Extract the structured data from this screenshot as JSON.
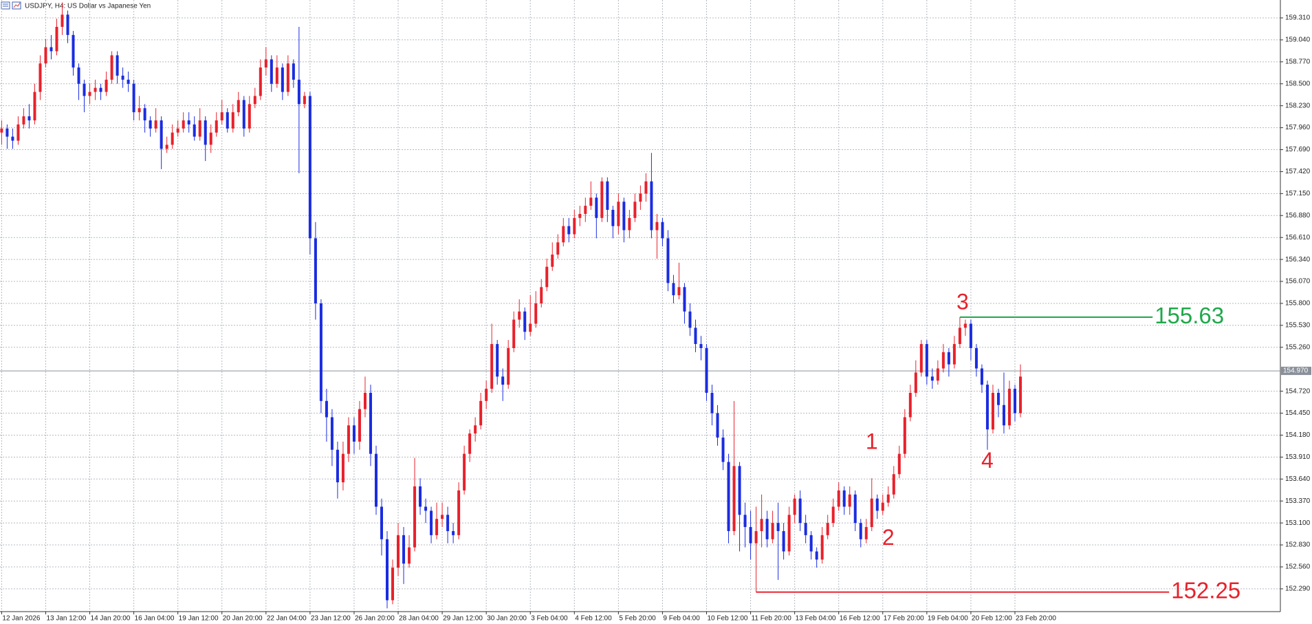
{
  "chart_data": {
    "type": "candlestick",
    "title": "USDJPY, H4:  US Dollar vs Japanese Yen",
    "up_color": "#e8212b",
    "down_color": "#1a2ce0",
    "grid": true,
    "xlim": [
      -0.3,
      232.2
    ],
    "ylim": [
      152.01,
      159.53
    ],
    "xticks": [
      {
        "value": 0,
        "label": "12 Jan 2026"
      },
      {
        "value": 8,
        "label": "13 Jan 12:00"
      },
      {
        "value": 16,
        "label": "14 Jan 20:00"
      },
      {
        "value": 24,
        "label": "16 Jan 04:00"
      },
      {
        "value": 32,
        "label": "19 Jan 12:00"
      },
      {
        "value": 40,
        "label": "20 Jan 20:00"
      },
      {
        "value": 48,
        "label": "22 Jan 04:00"
      },
      {
        "value": 56,
        "label": "23 Jan 12:00"
      },
      {
        "value": 64,
        "label": "26 Jan 20:00"
      },
      {
        "value": 72,
        "label": "28 Jan 04:00"
      },
      {
        "value": 80,
        "label": "29 Jan 12:00"
      },
      {
        "value": 88,
        "label": "30 Jan 20:00"
      },
      {
        "value": 96,
        "label": "3 Feb 04:00"
      },
      {
        "value": 104,
        "label": "4 Feb 12:00"
      },
      {
        "value": 112,
        "label": "5 Feb 20:00"
      },
      {
        "value": 120,
        "label": "9 Feb 04:00"
      },
      {
        "value": 128,
        "label": "10 Feb 12:00"
      },
      {
        "value": 136,
        "label": "11 Feb 20:00"
      },
      {
        "value": 144,
        "label": "13 Feb 04:00"
      },
      {
        "value": 152,
        "label": "16 Feb 12:00"
      },
      {
        "value": 160,
        "label": "17 Feb 20:00"
      },
      {
        "value": 168,
        "label": "19 Feb 04:00"
      },
      {
        "value": 176,
        "label": "20 Feb 12:00"
      },
      {
        "value": 184,
        "label": "23 Feb 20:00"
      }
    ],
    "yticks": [
      {
        "value": 152.29,
        "label": "152.290"
      },
      {
        "value": 152.56,
        "label": "152.560"
      },
      {
        "value": 152.83,
        "label": "152.830"
      },
      {
        "value": 153.1,
        "label": "153.100"
      },
      {
        "value": 153.37,
        "label": "153.370"
      },
      {
        "value": 153.64,
        "label": "153.640"
      },
      {
        "value": 153.91,
        "label": "153.910"
      },
      {
        "value": 154.18,
        "label": "154.180"
      },
      {
        "value": 154.45,
        "label": "154.450"
      },
      {
        "value": 154.72,
        "label": "154.720"
      },
      {
        "value": 155.26,
        "label": "155.260"
      },
      {
        "value": 155.53,
        "label": "155.530"
      },
      {
        "value": 155.8,
        "label": "155.800"
      },
      {
        "value": 156.07,
        "label": "156.070"
      },
      {
        "value": 156.34,
        "label": "156.340"
      },
      {
        "value": 156.61,
        "label": "156.610"
      },
      {
        "value": 156.88,
        "label": "156.880"
      },
      {
        "value": 157.15,
        "label": "157.150"
      },
      {
        "value": 157.42,
        "label": "157.420"
      },
      {
        "value": 157.69,
        "label": "157.690"
      },
      {
        "value": 157.96,
        "label": "157.960"
      },
      {
        "value": 158.23,
        "label": "158.230"
      },
      {
        "value": 158.5,
        "label": "158.500"
      },
      {
        "value": 158.77,
        "label": "158.770"
      },
      {
        "value": 159.04,
        "label": "159.040"
      },
      {
        "value": 159.31,
        "label": "159.310"
      }
    ],
    "current_price": {
      "value": 154.97,
      "label": "154.970"
    },
    "open": [
      157.9,
      157.95,
      157.85,
      157.8,
      158.0,
      158.1,
      158.05,
      158.4,
      158.75,
      158.95,
      158.9,
      159.2,
      159.35,
      159.1,
      158.7,
      158.5,
      158.35,
      158.4,
      158.45,
      158.4,
      158.55,
      158.85,
      158.6,
      158.55,
      158.5,
      158.15,
      158.2,
      158.05,
      157.95,
      158.05,
      157.7,
      157.75,
      157.9,
      157.95,
      158.05,
      158.0,
      157.85,
      158.05,
      157.75,
      157.9,
      158.05,
      158.15,
      157.95,
      158.15,
      158.3,
      157.95,
      158.25,
      158.35,
      158.7,
      158.8,
      158.5,
      158.7,
      158.4,
      158.75,
      158.55,
      158.25,
      158.35,
      156.6,
      155.8,
      154.6,
      154.4,
      154.0,
      153.6,
      153.95,
      154.3,
      154.1,
      154.5,
      154.7,
      153.95,
      153.3,
      152.9,
      152.15,
      152.55,
      152.95,
      152.6,
      152.8,
      153.55,
      153.3,
      153.25,
      152.95,
      153.15,
      153.2,
      153.0,
      152.95,
      153.5,
      153.95,
      154.2,
      154.3,
      154.6,
      154.75,
      155.3,
      154.9,
      154.8,
      155.25,
      155.6,
      155.7,
      155.45,
      155.55,
      155.8,
      156.0,
      156.25,
      156.4,
      156.55,
      156.75,
      156.65,
      156.85,
      156.9,
      157.0,
      157.1,
      156.85,
      157.3,
      156.95,
      156.75,
      157.05,
      156.7,
      156.85,
      157.05,
      157.15,
      157.3,
      156.7,
      156.8,
      156.6,
      156.05,
      155.9,
      156.0,
      155.7,
      155.5,
      155.3,
      155.25,
      154.7,
      154.45,
      154.15,
      153.85,
      153.0,
      153.8,
      153.2,
      153.05,
      152.85,
      153.0,
      153.15,
      152.9,
      153.1,
      153.0,
      152.75,
      153.2,
      153.4,
      153.1,
      152.95,
      152.75,
      152.65,
      152.95,
      153.1,
      153.3,
      153.5,
      153.3,
      153.45,
      153.1,
      152.9,
      153.05,
      153.4,
      153.25,
      153.35,
      153.45,
      153.7,
      153.95,
      154.4,
      154.7,
      154.95,
      155.3,
      154.9,
      154.85,
      155.0,
      155.2,
      155.05,
      155.3,
      155.5,
      155.55,
      155.25,
      155.0,
      154.8,
      154.25,
      154.7,
      154.55,
      154.3,
      154.75,
      154.45
    ],
    "high": [
      158.05,
      158.0,
      157.95,
      158.1,
      158.2,
      158.25,
      158.5,
      158.85,
      159.05,
      159.1,
      159.3,
      159.5,
      159.4,
      159.15,
      158.75,
      158.55,
      158.5,
      158.55,
      158.5,
      158.65,
      158.9,
      158.9,
      158.7,
      158.65,
      158.55,
      158.35,
      158.25,
      158.1,
      158.2,
      158.1,
      157.85,
      158.0,
      158.05,
      158.15,
      158.15,
      158.1,
      158.2,
      158.1,
      158.0,
      158.15,
      158.3,
      158.2,
      158.25,
      158.4,
      158.35,
      158.35,
      158.45,
      158.8,
      158.95,
      158.85,
      158.85,
      158.75,
      158.85,
      158.8,
      159.2,
      158.4,
      158.4,
      156.8,
      155.85,
      154.75,
      154.5,
      154.1,
      154.1,
      154.4,
      154.4,
      154.6,
      154.9,
      154.8,
      154.05,
      153.4,
      153.0,
      152.65,
      153.1,
      153.05,
      152.95,
      153.9,
      153.65,
      153.4,
      153.3,
      153.35,
      153.35,
      153.3,
      153.1,
      153.6,
      154.05,
      154.25,
      154.4,
      154.7,
      154.85,
      155.55,
      155.35,
      155.0,
      155.35,
      155.7,
      155.85,
      155.75,
      155.9,
      155.95,
      156.1,
      156.35,
      156.55,
      156.65,
      156.85,
      156.85,
      156.95,
      157.0,
      157.1,
      157.3,
      157.15,
      157.35,
      157.35,
      157.0,
      157.15,
      157.1,
      156.95,
      157.15,
      157.25,
      157.4,
      157.65,
      156.9,
      156.85,
      156.7,
      156.15,
      156.3,
      156.05,
      155.8,
      155.6,
      155.4,
      155.3,
      154.8,
      154.55,
      154.25,
      153.95,
      154.6,
      153.85,
      153.35,
      153.25,
      153.3,
      153.45,
      153.25,
      153.25,
      153.35,
      153.1,
      153.3,
      153.45,
      153.5,
      153.2,
      153.0,
      152.8,
      153.05,
      153.2,
      153.4,
      153.6,
      153.55,
      153.55,
      153.5,
      153.15,
      153.15,
      153.65,
      153.45,
      153.45,
      153.55,
      153.8,
      154.05,
      154.5,
      154.8,
      155.1,
      155.35,
      155.35,
      155.0,
      155.1,
      155.3,
      155.25,
      155.4,
      155.63,
      155.6,
      155.6,
      155.3,
      155.05,
      154.85,
      154.8,
      154.75,
      154.95,
      154.85,
      154.8,
      155.05
    ],
    "low": [
      157.75,
      157.7,
      157.7,
      157.75,
      157.95,
      157.95,
      158.0,
      158.3,
      158.7,
      158.8,
      158.85,
      159.1,
      159.0,
      158.6,
      158.3,
      158.15,
      158.25,
      158.3,
      158.3,
      158.35,
      158.5,
      158.5,
      158.45,
      158.4,
      158.05,
      158.05,
      157.9,
      157.85,
      157.9,
      157.45,
      157.65,
      157.7,
      157.85,
      157.9,
      157.9,
      157.8,
      157.8,
      157.55,
      157.65,
      157.85,
      158.0,
      157.9,
      157.9,
      158.1,
      157.85,
      157.9,
      158.2,
      158.3,
      158.6,
      158.4,
      158.45,
      158.3,
      158.35,
      158.45,
      157.4,
      158.2,
      156.4,
      155.6,
      154.45,
      154.1,
      153.8,
      153.4,
      153.5,
      153.85,
      153.95,
      154.0,
      154.4,
      153.8,
      153.2,
      152.7,
      152.05,
      152.1,
      152.45,
      152.35,
      152.55,
      152.75,
      153.2,
      153.1,
      152.85,
      152.9,
      153.05,
      152.85,
      152.85,
      152.9,
      153.45,
      153.85,
      154.1,
      154.25,
      154.5,
      154.7,
      154.8,
      154.6,
      154.75,
      155.2,
      155.5,
      155.35,
      155.4,
      155.5,
      155.75,
      155.95,
      156.2,
      156.35,
      156.5,
      156.55,
      156.6,
      156.75,
      156.8,
      156.95,
      156.6,
      156.8,
      156.8,
      156.6,
      156.65,
      156.55,
      156.6,
      156.8,
      156.95,
      157.05,
      156.6,
      156.35,
      156.5,
      155.95,
      155.8,
      155.85,
      155.55,
      155.4,
      155.2,
      155.1,
      154.6,
      154.3,
      154.05,
      153.75,
      152.85,
      152.95,
      152.75,
      152.8,
      152.65,
      152.25,
      152.8,
      152.8,
      152.85,
      152.4,
      152.65,
      152.7,
      153.1,
      153.0,
      152.85,
      152.65,
      152.55,
      152.6,
      152.9,
      153.05,
      153.25,
      153.2,
      153.2,
      153.0,
      152.8,
      152.85,
      153.0,
      153.15,
      153.2,
      153.3,
      153.4,
      153.65,
      153.9,
      154.35,
      154.65,
      154.9,
      154.8,
      154.75,
      154.8,
      154.95,
      154.9,
      155.0,
      155.25,
      155.4,
      155.1,
      154.9,
      154.7,
      154.0,
      154.2,
      154.4,
      154.2,
      154.25,
      154.35,
      154.4
    ],
    "close": [
      157.95,
      157.85,
      157.8,
      158.0,
      158.1,
      158.05,
      158.4,
      158.75,
      158.95,
      158.9,
      159.2,
      159.35,
      159.1,
      158.7,
      158.5,
      158.35,
      158.4,
      158.45,
      158.4,
      158.55,
      158.85,
      158.6,
      158.55,
      158.5,
      158.15,
      158.2,
      158.05,
      157.95,
      158.05,
      157.7,
      157.75,
      157.9,
      157.95,
      158.05,
      158.0,
      157.85,
      158.05,
      157.75,
      157.9,
      158.05,
      158.15,
      157.95,
      158.15,
      158.3,
      157.95,
      158.25,
      158.35,
      158.7,
      158.8,
      158.5,
      158.7,
      158.4,
      158.75,
      158.55,
      158.25,
      158.35,
      156.6,
      155.8,
      154.6,
      154.4,
      154.0,
      153.6,
      153.95,
      154.3,
      154.1,
      154.5,
      154.7,
      153.95,
      153.3,
      152.9,
      152.15,
      152.55,
      152.95,
      152.6,
      152.8,
      153.55,
      153.3,
      153.25,
      152.95,
      153.15,
      153.2,
      153.0,
      152.95,
      153.5,
      153.95,
      154.2,
      154.3,
      154.6,
      154.75,
      155.3,
      154.9,
      154.8,
      155.25,
      155.6,
      155.7,
      155.45,
      155.55,
      155.8,
      156.0,
      156.25,
      156.4,
      156.55,
      156.75,
      156.65,
      156.85,
      156.9,
      157.0,
      157.1,
      156.85,
      157.3,
      156.95,
      156.75,
      157.05,
      156.7,
      156.85,
      157.05,
      157.15,
      157.3,
      156.7,
      156.8,
      156.6,
      156.05,
      155.9,
      156.0,
      155.7,
      155.5,
      155.3,
      155.25,
      154.7,
      154.45,
      154.15,
      153.85,
      153.0,
      153.8,
      153.2,
      153.05,
      152.85,
      153.0,
      153.15,
      152.9,
      153.1,
      153.0,
      152.75,
      153.2,
      153.4,
      153.1,
      152.95,
      152.75,
      152.65,
      152.95,
      153.1,
      153.3,
      153.5,
      153.3,
      153.45,
      153.1,
      152.9,
      153.05,
      153.4,
      153.25,
      153.35,
      153.45,
      153.7,
      153.95,
      154.4,
      154.7,
      154.95,
      155.3,
      154.9,
      154.85,
      155.0,
      155.2,
      155.05,
      155.3,
      155.5,
      155.55,
      155.25,
      155.0,
      154.8,
      154.25,
      154.7,
      154.55,
      154.3,
      154.75,
      154.45,
      154.9
    ],
    "levels": [
      {
        "value": 155.63,
        "from": 174,
        "to": 209,
        "color": "#1ea84a"
      },
      {
        "value": 152.25,
        "from": 137,
        "to": 212,
        "color": "#e8212b"
      }
    ],
    "wave_labels": [
      {
        "text": "1",
        "x": 158,
        "y": 154.08,
        "color": "#e8212b"
      },
      {
        "text": "2",
        "x": 161,
        "y": 152.9,
        "color": "#e8212b"
      },
      {
        "text": "3",
        "x": 174.5,
        "y": 155.8,
        "color": "#e8212b"
      },
      {
        "text": "4",
        "x": 179,
        "y": 153.85,
        "color": "#e8212b"
      }
    ]
  }
}
